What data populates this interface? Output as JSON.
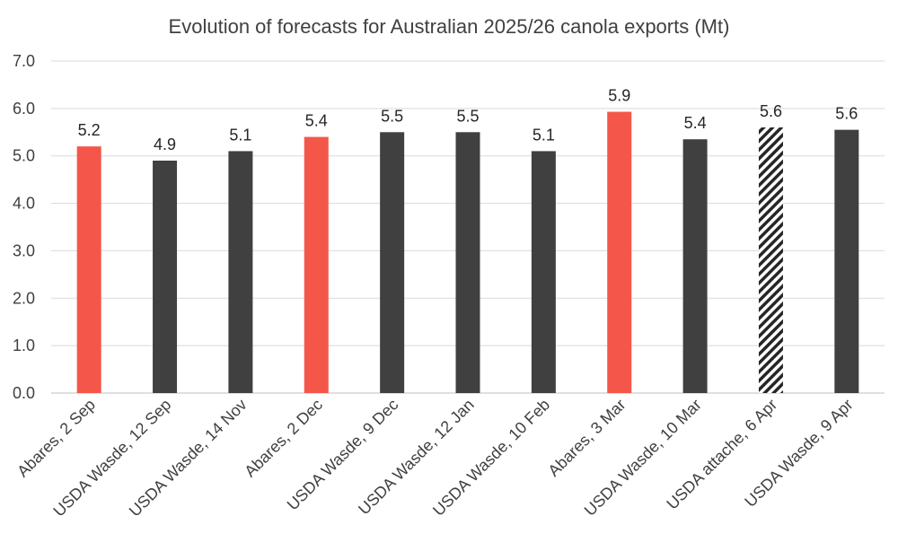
{
  "chart_data": {
    "type": "bar",
    "title": "Evolution of forecasts for Australian 2025/26 canola exports (Mt)",
    "xlabel": "",
    "ylabel": "",
    "ylim": [
      0,
      7
    ],
    "yticks": [
      "0.0",
      "1.0",
      "2.0",
      "3.0",
      "4.0",
      "5.0",
      "6.0",
      "7.0"
    ],
    "grid": true,
    "legend": "none",
    "categories": [
      "Abares, 2 Sep",
      "USDA Wasde, 12 Sep",
      "USDA Wasde, 14 Nov",
      "Abares, 2 Dec",
      "USDA Wasde, 9 Dec",
      "USDA Wasde, 12 Jan",
      "USDA Wasde, 10 Feb",
      "Abares, 3 Mar",
      "USDA Wasde, 10 Mar",
      "USDA attache, 6 Apr",
      "USDA Wasde, 9 Apr"
    ],
    "values": [
      5.2,
      4.9,
      5.1,
      5.4,
      5.5,
      5.5,
      5.1,
      5.93,
      5.35,
      5.6,
      5.55
    ],
    "data_labels": [
      "5.2",
      "4.9",
      "5.1",
      "5.4",
      "5.5",
      "5.5",
      "5.1",
      "5.9",
      "5.4",
      "5.6",
      "5.6"
    ],
    "bar_styles": [
      "abares",
      "wasde",
      "wasde",
      "abares",
      "wasde",
      "wasde",
      "wasde",
      "abares",
      "wasde",
      "attache",
      "wasde"
    ],
    "colors": {
      "abares": "#f4574a",
      "wasde": "#404040",
      "attache": "#262626",
      "gridline": "#d9d9d9",
      "axis": "#bfbfbf"
    }
  }
}
